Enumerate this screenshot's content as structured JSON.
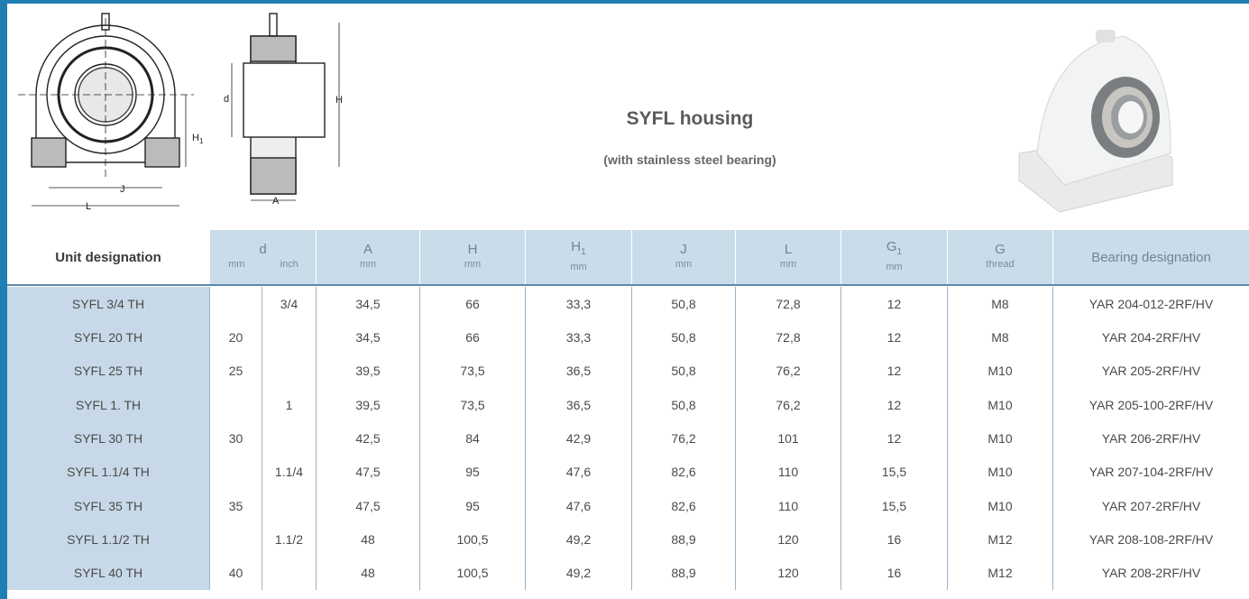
{
  "title": "SYFL housing",
  "subtitle": "(with stainless steel bearing)",
  "front_view": {
    "height_label": {
      "text": "H",
      "sub": "1"
    },
    "inner_label": "J",
    "outer_label": "L"
  },
  "side_view": {
    "bore_label": "d",
    "height_label": "H",
    "width_label": "A"
  },
  "table": {
    "columns": [
      {
        "label": "Unit designation"
      },
      {
        "label": "d",
        "units": [
          "mm",
          "inch"
        ]
      },
      {
        "label": "A",
        "unit": "mm"
      },
      {
        "label": "H",
        "unit": "mm"
      },
      {
        "label": "H",
        "sub": "1",
        "unit": "mm"
      },
      {
        "label": "J",
        "unit": "mm"
      },
      {
        "label": "L",
        "unit": "mm"
      },
      {
        "label": "G",
        "sub": "1",
        "unit": "mm"
      },
      {
        "label": "G",
        "unit": "thread"
      },
      {
        "label": "Bearing designation"
      }
    ],
    "rows": [
      [
        "SYFL 3/4 TH",
        null,
        "3/4",
        "34,5",
        "66",
        "33,3",
        "50,8",
        "72,8",
        "12",
        "M8",
        "YAR 204-012-2RF/HV"
      ],
      [
        "SYFL 20 TH",
        "20",
        null,
        "34,5",
        "66",
        "33,3",
        "50,8",
        "72,8",
        "12",
        "M8",
        "YAR 204-2RF/HV"
      ],
      [
        "SYFL 25 TH",
        "25",
        null,
        "39,5",
        "73,5",
        "36,5",
        "50,8",
        "76,2",
        "12",
        "M10",
        "YAR 205-2RF/HV"
      ],
      [
        "SYFL 1. TH",
        null,
        "1",
        "39,5",
        "73,5",
        "36,5",
        "50,8",
        "76,2",
        "12",
        "M10",
        "YAR 205-100-2RF/HV"
      ],
      [
        "SYFL 30 TH",
        "30",
        null,
        "42,5",
        "84",
        "42,9",
        "76,2",
        "101",
        "12",
        "M10",
        "YAR 206-2RF/HV"
      ],
      [
        "SYFL 1.1/4 TH",
        null,
        "1.1/4",
        "47,5",
        "95",
        "47,6",
        "82,6",
        "110",
        "15,5",
        "M10",
        "YAR 207-104-2RF/HV"
      ],
      [
        "SYFL 35 TH",
        "35",
        null,
        "47,5",
        "95",
        "47,6",
        "82,6",
        "110",
        "15,5",
        "M10",
        "YAR 207-2RF/HV"
      ],
      [
        "SYFL 1.1/2 TH",
        null,
        "1.1/2",
        "48",
        "100,5",
        "49,2",
        "88,9",
        "120",
        "16",
        "M12",
        "YAR 208-108-2RF/HV"
      ],
      [
        "SYFL 40 TH",
        "40",
        null,
        "48",
        "100,5",
        "49,2",
        "88,9",
        "120",
        "16",
        "M12",
        "YAR 208-2RF/HV"
      ]
    ]
  }
}
